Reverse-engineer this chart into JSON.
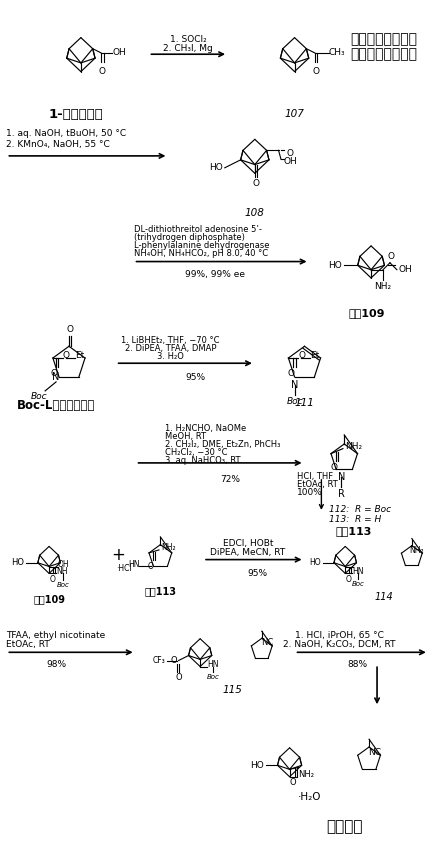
{
  "bg_color": "#ffffff",
  "title_line1": "人工合成沙格列汀",
  "title_line2": "的化学反应路线图",
  "label_107": "107",
  "label_108": "108",
  "label_109": "前体109",
  "label_111": "111",
  "label_113": "前体113",
  "label_114": "114",
  "label_115": "115",
  "label_saxagliptin": "沙格列汀",
  "label_start": "1-金刚烷甲酸",
  "label_boc": "Boc-L焦谷氨酸乙酯",
  "r1": "1. SOCl₂\n2. CH₃I, Mg",
  "r2": "1. aq. NaOH, tBuOH, 50 °C\n2. KMnO₄, NaOH, 55 °C",
  "r3_line1": "DL-dithiothreitol adenosine 5’-",
  "r3_line2": "(trihydrogen diphosphate)",
  "r3_line3": "L-phenylalanine dehydrogenase",
  "r3_line4": "NH₄OH, NH₄HCO₂, pH 8.0, 40 °C",
  "r3_yield": "99%, 99% ee",
  "r4_line1": "1. LiBHEt₂, THF, −70 °C",
  "r4_line2": "2. DiPEA, TFAA, DMAP",
  "r4_line3": "3. H₂O",
  "r4_yield": "95%",
  "r5_line1": "1. H₂NCHO, NaOMe",
  "r5_line2": "MeOH, RT",
  "r5_line3": "2. CH₂I₂, DME, Et₂Zn, PhCH₃",
  "r5_line4": "CH₂Cl₂, −30 °C",
  "r5_line5": "3. aq. NaHCO₃, RT",
  "r5_yield": "72%",
  "r5b_line1": "HCl, THF",
  "r5b_line2": "EtOAc, RT",
  "r5b_yield": "100%",
  "r6_line1": "EDCl, HOBt",
  "r6_line2": "DiPEA, MeCN, RT",
  "r6_yield": "95%",
  "r7_line1": "TFAA, ethyl nicotinate",
  "r7_line2": "EtOAc, RT",
  "r7_yield": "98%",
  "r8_line1": "1. HCl, iPrOH, 65 °C",
  "r8_line2": "2. NaOH, K₂CO₃, DCM, RT",
  "r8_yield": "88%",
  "112_label": "112:  R = Boc",
  "113_label": "113:  R = H"
}
